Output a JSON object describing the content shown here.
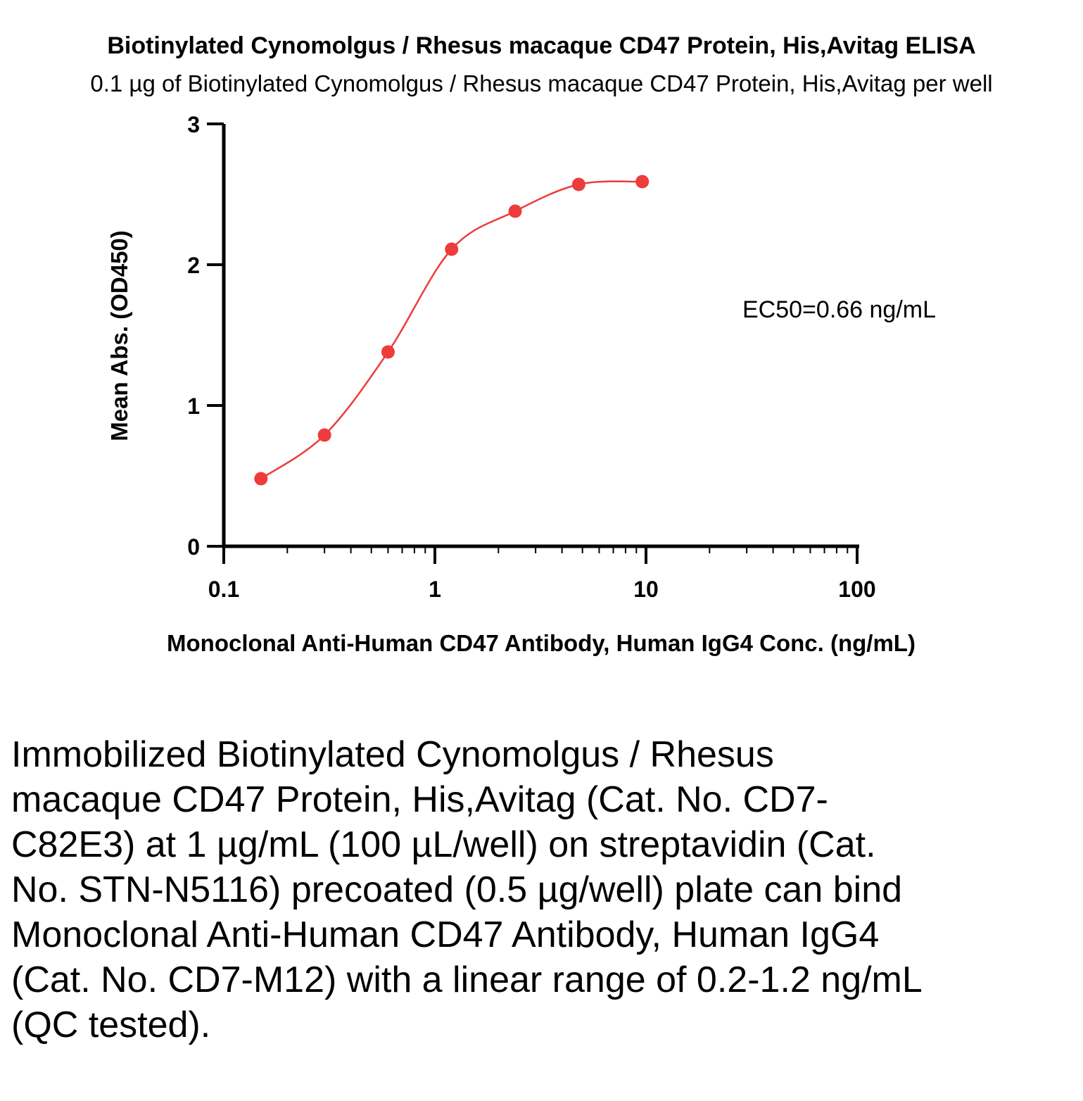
{
  "chart_data": {
    "type": "scatter",
    "title": "Biotinylated Cynomolgus / Rhesus macaque CD47 Protein, His,Avitag ELISA",
    "subtitle": "0.1 µg of Biotinylated Cynomolgus / Rhesus macaque CD47 Protein, His,Avitag per well",
    "xlabel": "Monoclonal Anti-Human CD47 Antibody, Human IgG4 Conc. (ng/mL)",
    "ylabel": "Mean Abs. (OD450)",
    "xscale": "log",
    "xlim": [
      0.1,
      100
    ],
    "ylim": [
      0,
      3
    ],
    "xticks": [
      "0.1",
      "1",
      "10",
      "100"
    ],
    "yticks": [
      "0",
      "1",
      "2",
      "3"
    ],
    "grid": false,
    "series": [
      {
        "x": [
          0.15,
          0.3,
          0.6,
          1.2,
          2.4,
          4.8,
          9.6
        ],
        "y": [
          0.48,
          0.79,
          1.38,
          2.11,
          2.38,
          2.57,
          2.59
        ],
        "color": "#ee3b3b",
        "fit": "4PL curve"
      }
    ],
    "annotations": [
      "EC50=0.66 ng/mL"
    ]
  },
  "caption": "Immobilized Biotinylated Cynomolgus / Rhesus macaque CD47 Protein, His,Avitag (Cat. No. CD7-C82E3) at 1 µg/mL (100 µL/well) on streptavidin (Cat. No. STN-N5116) precoated (0.5 µg/well) plate can bind Monoclonal Anti-Human CD47 Antibody, Human IgG4 (Cat. No. CD7-M12) with a linear range of 0.2-1.2 ng/mL (QC tested)."
}
